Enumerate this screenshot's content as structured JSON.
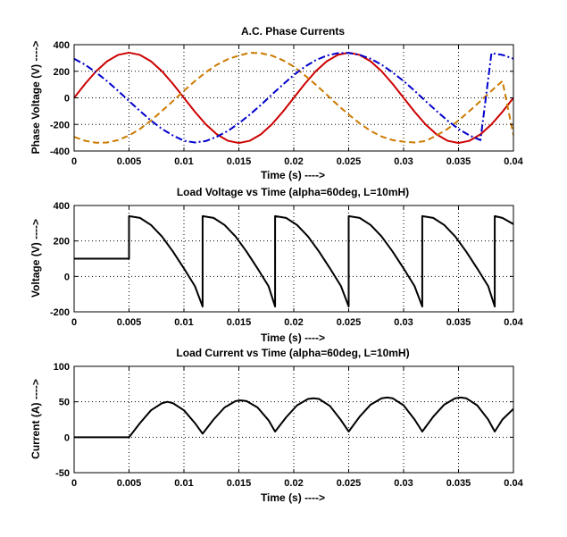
{
  "figure": {
    "background": "#ffffff"
  },
  "chart_data": [
    {
      "type": "line",
      "title": "A.C. Phase Currents",
      "xlabel": "Time (s) ---->",
      "ylabel": "Phase Voltage (V) ---->",
      "xlim": [
        0,
        0.04
      ],
      "ylim": [
        -400,
        400
      ],
      "xticks": [
        0,
        0.005,
        0.01,
        0.015,
        0.02,
        0.025,
        0.03,
        0.035,
        0.04
      ],
      "xtick_labels": [
        "0",
        "0.005",
        "0.01",
        "0.015",
        "0.02",
        "0.025",
        "0.03",
        "0.035",
        "0.04"
      ],
      "yticks": [
        -400,
        -200,
        0,
        200,
        400
      ],
      "ytick_labels": [
        "-400",
        "-200",
        "0",
        "200",
        "400"
      ],
      "grid": true,
      "series": [
        {
          "color": "#cc0000",
          "style": "solid",
          "x": [
            0,
            0.001,
            0.002,
            0.003,
            0.004,
            0.005,
            0.006,
            0.007,
            0.008,
            0.009,
            0.01,
            0.011,
            0.012,
            0.013,
            0.014,
            0.015,
            0.016,
            0.017,
            0.018,
            0.019,
            0.02,
            0.021,
            0.022,
            0.023,
            0.024,
            0.025,
            0.026,
            0.027,
            0.028,
            0.029,
            0.03,
            0.031,
            0.032,
            0.033,
            0.034,
            0.035,
            0.036,
            0.037,
            0.038,
            0.039,
            0.04
          ],
          "y": [
            0,
            105,
            200,
            275,
            323,
            340,
            323,
            275,
            200,
            105,
            0,
            -105,
            -200,
            -275,
            -323,
            -340,
            -323,
            -275,
            -200,
            -105,
            0,
            105,
            200,
            275,
            323,
            340,
            323,
            275,
            200,
            105,
            0,
            -105,
            -200,
            -275,
            -323,
            -340,
            -323,
            -275,
            -200,
            -105,
            0
          ]
        },
        {
          "color": "#cc7a00",
          "style": "dashed",
          "x": [
            0,
            0.001,
            0.002,
            0.003,
            0.004,
            0.005,
            0.006,
            0.007,
            0.008,
            0.009,
            0.01,
            0.011,
            0.012,
            0.013,
            0.014,
            0.015,
            0.016,
            0.017,
            0.018,
            0.019,
            0.02,
            0.021,
            0.022,
            0.023,
            0.024,
            0.025,
            0.026,
            0.027,
            0.028,
            0.029,
            0.03,
            0.031,
            0.032,
            0.033,
            0.034,
            0.035,
            0.036,
            0.037,
            0.038,
            0.039,
            0.04
          ],
          "y": [
            -294,
            -323,
            -338,
            -336,
            -318,
            -283,
            -234,
            -171,
            -99,
            -24,
            53,
            126,
            193,
            249,
            291,
            318,
            339,
            336,
            318,
            283,
            235,
            170,
            99,
            24,
            -54,
            -126,
            -192,
            -249,
            -291,
            -318,
            -330,
            -336,
            -325,
            -283,
            -234,
            -171,
            -99,
            -24,
            53,
            126,
            -280
          ]
        },
        {
          "color": "#0000cc",
          "style": "dashdot",
          "x": [
            0,
            0.001,
            0.002,
            0.003,
            0.004,
            0.005,
            0.006,
            0.007,
            0.008,
            0.009,
            0.01,
            0.011,
            0.012,
            0.013,
            0.014,
            0.015,
            0.016,
            0.017,
            0.018,
            0.019,
            0.02,
            0.021,
            0.022,
            0.023,
            0.024,
            0.025,
            0.026,
            0.027,
            0.028,
            0.029,
            0.03,
            0.031,
            0.032,
            0.033,
            0.034,
            0.035,
            0.036,
            0.037,
            0.038,
            0.039,
            0.04
          ],
          "y": [
            294,
            249,
            191,
            126,
            53,
            -24,
            -99,
            -171,
            -234,
            -283,
            -323,
            -336,
            -325,
            -292,
            -249,
            -192,
            -126,
            -54,
            24,
            99,
            171,
            234,
            283,
            318,
            336,
            338,
            323,
            294,
            249,
            191,
            126,
            53,
            -24,
            -99,
            -171,
            -234,
            -283,
            -318,
            336,
            323,
            294
          ]
        }
      ]
    },
    {
      "type": "line",
      "title": "Load Voltage vs Time (alpha=60deg, L=10mH)",
      "xlabel": "Time (s) ---->",
      "ylabel": "Voltage (V) ---->",
      "xlim": [
        0,
        0.04
      ],
      "ylim": [
        -200,
        400
      ],
      "xticks": [
        0,
        0.005,
        0.01,
        0.015,
        0.02,
        0.025,
        0.03,
        0.035,
        0.04
      ],
      "xtick_labels": [
        "0",
        "0.005",
        "0.01",
        "0.015",
        "0.02",
        "0.025",
        "0.03",
        "0.035",
        "0.04"
      ],
      "yticks": [
        -200,
        0,
        200,
        400
      ],
      "ytick_labels": [
        "-200",
        "0",
        "200",
        "400"
      ],
      "grid": true,
      "series": [
        {
          "color": "#000000",
          "style": "solid",
          "x": [
            0,
            0.005,
            0.005,
            0.006,
            0.007,
            0.008,
            0.009,
            0.01,
            0.011,
            0.0117,
            0.0117,
            0.0127,
            0.0137,
            0.0147,
            0.0157,
            0.0167,
            0.0177,
            0.0183,
            0.0183,
            0.0193,
            0.0203,
            0.0213,
            0.0223,
            0.0233,
            0.0243,
            0.025,
            0.025,
            0.026,
            0.027,
            0.028,
            0.029,
            0.03,
            0.031,
            0.0317,
            0.0317,
            0.0327,
            0.0337,
            0.0347,
            0.0357,
            0.0367,
            0.0377,
            0.0383,
            0.0383,
            0.039,
            0.04
          ],
          "y": [
            100,
            100,
            340,
            330,
            290,
            225,
            140,
            45,
            -55,
            -170,
            340,
            330,
            290,
            225,
            140,
            45,
            -55,
            -170,
            340,
            330,
            290,
            225,
            140,
            45,
            -55,
            -170,
            340,
            330,
            290,
            225,
            140,
            45,
            -55,
            -170,
            340,
            330,
            290,
            225,
            140,
            45,
            -55,
            -170,
            340,
            330,
            295
          ]
        }
      ]
    },
    {
      "type": "line",
      "title": "Load Current vs Time (alpha=60deg, L=10mH)",
      "xlabel": "Time (s) ---->",
      "ylabel": "Current (A) ---->",
      "xlim": [
        0,
        0.04
      ],
      "ylim": [
        -50,
        100
      ],
      "xticks": [
        0,
        0.005,
        0.01,
        0.015,
        0.02,
        0.025,
        0.03,
        0.035,
        0.04
      ],
      "xtick_labels": [
        "0",
        "0.005",
        "0.01",
        "0.015",
        "0.02",
        "0.025",
        "0.03",
        "0.035",
        "0.04"
      ],
      "yticks": [
        -50,
        0,
        50,
        100
      ],
      "ytick_labels": [
        "-50",
        "0",
        "50",
        "100"
      ],
      "grid": true,
      "series": [
        {
          "color": "#000000",
          "style": "solid",
          "x": [
            0,
            0.005,
            0.006,
            0.007,
            0.008,
            0.0085,
            0.009,
            0.01,
            0.011,
            0.0117,
            0.0127,
            0.0137,
            0.0147,
            0.0152,
            0.0157,
            0.0167,
            0.0177,
            0.0183,
            0.0193,
            0.0203,
            0.0213,
            0.0218,
            0.0223,
            0.0233,
            0.0243,
            0.025,
            0.026,
            0.027,
            0.028,
            0.0285,
            0.029,
            0.03,
            0.031,
            0.0317,
            0.0327,
            0.0337,
            0.0347,
            0.0352,
            0.0357,
            0.0367,
            0.0377,
            0.0383,
            0.039,
            0.04
          ],
          "y": [
            0,
            0,
            20,
            38,
            48,
            50,
            48,
            38,
            20,
            5,
            25,
            42,
            51,
            52,
            51,
            42,
            24,
            8,
            28,
            45,
            54,
            55,
            54,
            44,
            24,
            8,
            29,
            46,
            55,
            56,
            55,
            45,
            25,
            8,
            29,
            46,
            55,
            56,
            55,
            45,
            25,
            8,
            25,
            40
          ]
        }
      ]
    }
  ]
}
